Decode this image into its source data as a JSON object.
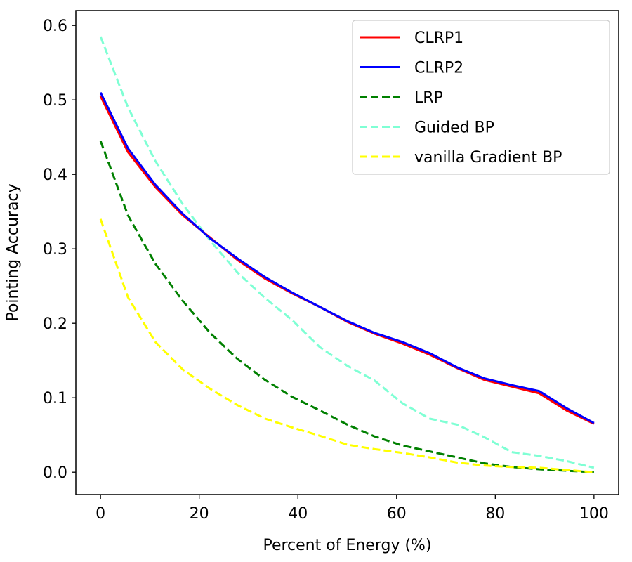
{
  "chart_data": {
    "type": "line",
    "title": "",
    "xlabel": "Percent of Energy (%)",
    "ylabel": "Pointing Accuracy",
    "xlim": [
      -5,
      105
    ],
    "ylim": [
      -0.03,
      0.62
    ],
    "xticks": [
      0,
      20,
      40,
      60,
      80,
      100
    ],
    "xtick_labels": [
      "0",
      "20",
      "40",
      "60",
      "80",
      "100"
    ],
    "yticks": [
      0.0,
      0.1,
      0.2,
      0.3,
      0.4,
      0.5,
      0.6
    ],
    "ytick_labels": [
      "0.0",
      "0.1",
      "0.2",
      "0.3",
      "0.4",
      "0.5",
      "0.6"
    ],
    "grid": false,
    "legend_position": "top-right",
    "x": [
      0,
      5.56,
      11.11,
      16.67,
      22.22,
      27.78,
      33.33,
      38.89,
      44.44,
      50,
      55.56,
      61.11,
      66.67,
      72.22,
      77.78,
      83.33,
      88.89,
      94.44,
      100
    ],
    "series": [
      {
        "name": "CLRP1",
        "color": "#ff0000",
        "style": "solid",
        "values": [
          0.505,
          0.43,
          0.383,
          0.345,
          0.315,
          0.285,
          0.26,
          0.24,
          0.222,
          0.202,
          0.186,
          0.173,
          0.158,
          0.14,
          0.124,
          0.115,
          0.106,
          0.083,
          0.065
        ]
      },
      {
        "name": "CLRP2",
        "color": "#0000ff",
        "style": "solid",
        "values": [
          0.51,
          0.435,
          0.386,
          0.347,
          0.314,
          0.287,
          0.262,
          0.241,
          0.222,
          0.203,
          0.187,
          0.175,
          0.16,
          0.141,
          0.126,
          0.117,
          0.109,
          0.086,
          0.066
        ]
      },
      {
        "name": "LRP",
        "color": "#008000",
        "style": "dashed",
        "values": [
          0.445,
          0.345,
          0.28,
          0.23,
          0.187,
          0.152,
          0.124,
          0.101,
          0.083,
          0.064,
          0.048,
          0.036,
          0.028,
          0.02,
          0.012,
          0.007,
          0.004,
          0.002,
          0.0
        ]
      },
      {
        "name": "Guided BP",
        "color": "#7fffd4",
        "style": "dashed",
        "values": [
          0.585,
          0.49,
          0.418,
          0.36,
          0.311,
          0.268,
          0.234,
          0.204,
          0.168,
          0.143,
          0.123,
          0.093,
          0.072,
          0.064,
          0.047,
          0.027,
          0.022,
          0.015,
          0.006
        ]
      },
      {
        "name": "vanilla Gradient BP",
        "color": "#ffff00",
        "style": "dashed",
        "values": [
          0.34,
          0.235,
          0.175,
          0.138,
          0.112,
          0.09,
          0.072,
          0.06,
          0.049,
          0.037,
          0.031,
          0.026,
          0.02,
          0.013,
          0.009,
          0.007,
          0.006,
          0.003,
          0.0
        ]
      }
    ]
  }
}
